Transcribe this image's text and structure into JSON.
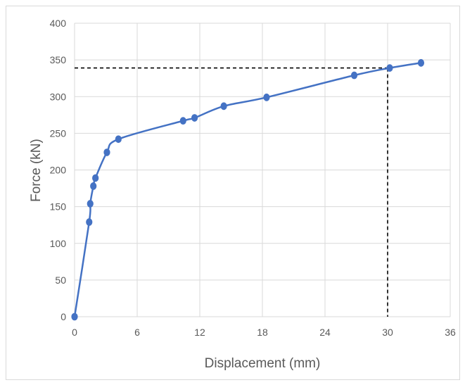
{
  "chart_data": {
    "type": "line",
    "title": "",
    "xlabel": "Displacement (mm)",
    "ylabel": "Force (kN)",
    "xlim": [
      0,
      36
    ],
    "ylim": [
      0,
      400
    ],
    "xticks": [
      0,
      6,
      12,
      18,
      24,
      30,
      36
    ],
    "yticks": [
      0,
      50,
      100,
      150,
      200,
      250,
      300,
      350,
      400
    ],
    "grid": true,
    "legend": "none",
    "series": [
      {
        "color": "#4472c4",
        "x": [
          0,
          1.4,
          1.5,
          1.8,
          2.0,
          3.1,
          4.2,
          10.4,
          11.5,
          14.3,
          18.4,
          26.8,
          30.2,
          33.2
        ],
        "y": [
          0,
          129,
          154,
          178,
          189,
          224,
          242,
          267,
          271,
          287,
          299,
          329,
          339,
          346
        ]
      }
    ],
    "reference_lines": {
      "color": "#000000",
      "style": "dashed",
      "x": 30,
      "y": 339
    }
  }
}
